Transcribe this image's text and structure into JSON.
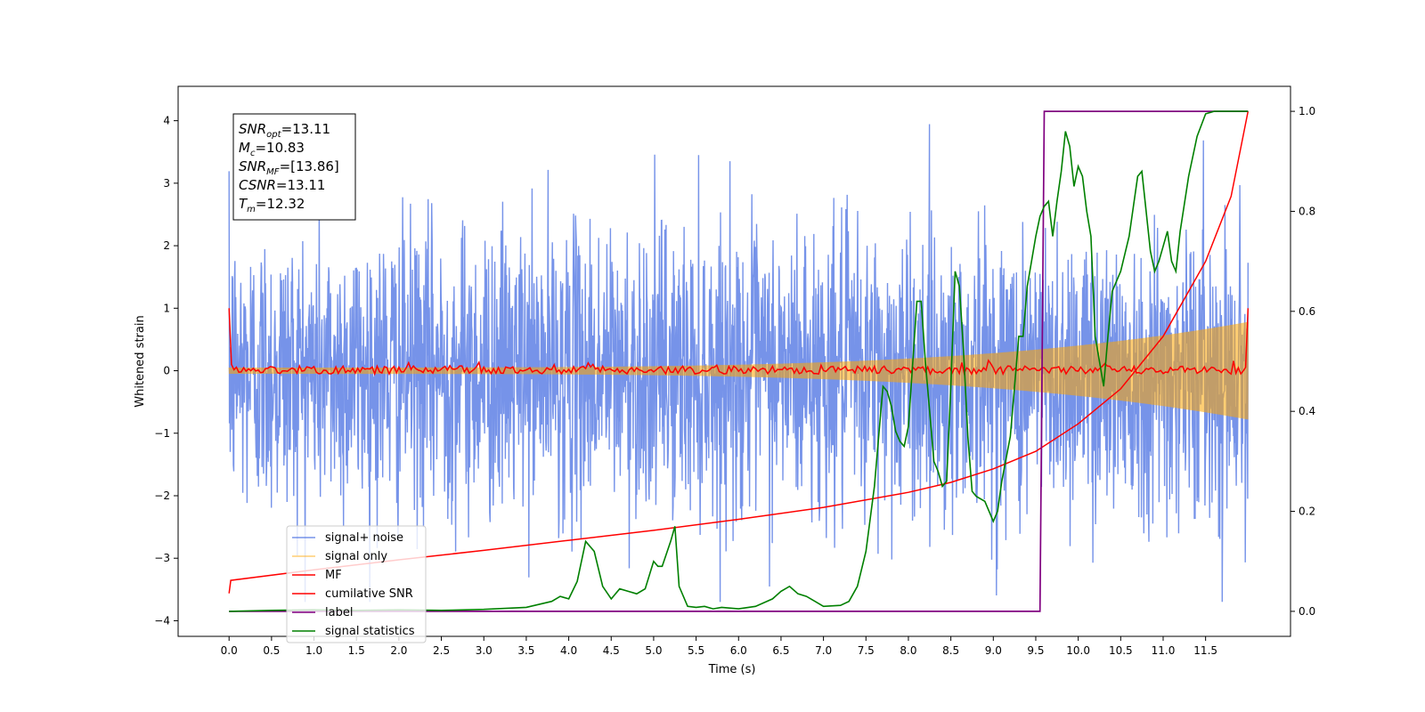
{
  "chart_data": {
    "type": "line",
    "title": "",
    "xlabel": "Time (s)",
    "ylabel": "Whitened strain",
    "ylabel_right": "",
    "xlim": [
      -0.6,
      12.5
    ],
    "ylim": [
      -4.25,
      4.55
    ],
    "ylim_right": [
      -0.05,
      1.05
    ],
    "x_ticks": [
      0.0,
      0.5,
      1.0,
      1.5,
      2.0,
      2.5,
      3.0,
      3.5,
      4.0,
      4.5,
      5.0,
      5.5,
      6.0,
      6.5,
      7.0,
      7.5,
      8.0,
      8.5,
      9.0,
      9.5,
      10.0,
      10.5,
      11.0,
      11.5
    ],
    "x_tick_labels": [
      "0.0",
      "0.5",
      "1.0",
      "1.5",
      "2.0",
      "2.5",
      "3.0",
      "3.5",
      "4.0",
      "4.5",
      "5.0",
      "5.5",
      "6.0",
      "6.5",
      "7.0",
      "7.5",
      "8.0",
      "8.5",
      "9.0",
      "9.5",
      "10.0",
      "10.5",
      "11.0",
      "11.5"
    ],
    "y_ticks": [
      -4,
      -3,
      -2,
      -1,
      0,
      1,
      2,
      3,
      4
    ],
    "y_tick_labels": [
      "−4",
      "−3",
      "−2",
      "−1",
      "0",
      "1",
      "2",
      "3",
      "4"
    ],
    "y_ticks_right": [
      0.0,
      0.2,
      0.4,
      0.6,
      0.8,
      1.0
    ],
    "y_tick_labels_right": [
      "0.0",
      "0.2",
      "0.4",
      "0.6",
      "0.8",
      "1.0"
    ],
    "grid": false,
    "legend_position": "lower-left",
    "annotation_lines": [
      {
        "name": "SNR",
        "sub": "opt",
        "value": "=13.11"
      },
      {
        "name": "M",
        "sub": "c",
        "value": "=10.83"
      },
      {
        "name": "SNR",
        "sub": "MF",
        "value": "=[13.86]"
      },
      {
        "name": "CSNR",
        "sub": "",
        "value": "=13.11"
      },
      {
        "name": "T",
        "sub": "m",
        "value": "=12.32"
      }
    ],
    "series": [
      {
        "name": "signal+ noise",
        "color": "#4169e1",
        "axis": "left",
        "description_range": [
          -3.7,
          4.2
        ],
        "x_range": [
          0.0,
          12.0
        ]
      },
      {
        "name": "signal only",
        "color": "#ffa500",
        "axis": "left",
        "amplitude_start": 0.05,
        "amplitude_end": 0.78,
        "x_range": [
          0.0,
          12.0
        ]
      },
      {
        "name": "MF",
        "color": "#ff0000",
        "axis": "left",
        "start_value": 1.0,
        "end_value": 1.0,
        "typical_range": [
          -0.1,
          0.15
        ],
        "x_range": [
          0.0,
          12.0
        ]
      },
      {
        "name": "cumilative SNR",
        "color": "#ff0000",
        "axis": "right",
        "x": [
          0.0,
          0.02,
          1.0,
          2.0,
          3.0,
          4.0,
          5.0,
          6.0,
          7.0,
          8.0,
          8.5,
          9.0,
          9.5,
          10.0,
          10.5,
          11.0,
          11.5,
          11.8,
          12.0
        ],
        "values": [
          0.036,
          0.062,
          0.083,
          0.103,
          0.122,
          0.142,
          0.162,
          0.184,
          0.208,
          0.238,
          0.258,
          0.285,
          0.32,
          0.375,
          0.445,
          0.55,
          0.7,
          0.83,
          1.0
        ]
      },
      {
        "name": "label",
        "color": "#800080",
        "axis": "right",
        "x": [
          0.0,
          9.55,
          9.6,
          12.0
        ],
        "values": [
          0.0,
          0.0,
          1.0,
          1.0
        ]
      },
      {
        "name": "signal statistics",
        "color": "#008000",
        "axis": "right",
        "x": [
          0.0,
          0.5,
          1.0,
          1.5,
          2.0,
          2.5,
          3.0,
          3.5,
          3.8,
          3.9,
          4.0,
          4.1,
          4.2,
          4.3,
          4.4,
          4.5,
          4.6,
          4.7,
          4.8,
          4.9,
          5.0,
          5.05,
          5.1,
          5.2,
          5.25,
          5.3,
          5.4,
          5.5,
          5.6,
          5.7,
          5.8,
          6.0,
          6.2,
          6.4,
          6.5,
          6.6,
          6.7,
          6.8,
          6.9,
          7.0,
          7.2,
          7.3,
          7.4,
          7.5,
          7.6,
          7.7,
          7.75,
          7.8,
          7.85,
          7.9,
          7.95,
          8.0,
          8.1,
          8.15,
          8.2,
          8.3,
          8.35,
          8.4,
          8.45,
          8.5,
          8.55,
          8.6,
          8.65,
          8.7,
          8.75,
          8.8,
          8.9,
          9.0,
          9.05,
          9.1,
          9.2,
          9.3,
          9.35,
          9.4,
          9.45,
          9.5,
          9.55,
          9.6,
          9.65,
          9.7,
          9.75,
          9.8,
          9.85,
          9.9,
          9.95,
          10.0,
          10.05,
          10.1,
          10.15,
          10.2,
          10.3,
          10.35,
          10.4,
          10.5,
          10.6,
          10.7,
          10.75,
          10.8,
          10.85,
          10.9,
          10.95,
          11.0,
          11.05,
          11.1,
          11.15,
          11.2,
          11.3,
          11.4,
          11.5,
          11.6,
          11.8,
          12.0
        ],
        "values": [
          0.0,
          0.002,
          0.003,
          0.002,
          0.003,
          0.002,
          0.004,
          0.008,
          0.02,
          0.03,
          0.025,
          0.06,
          0.14,
          0.12,
          0.05,
          0.025,
          0.045,
          0.04,
          0.035,
          0.045,
          0.1,
          0.09,
          0.09,
          0.14,
          0.17,
          0.05,
          0.01,
          0.008,
          0.01,
          0.005,
          0.008,
          0.005,
          0.01,
          0.025,
          0.04,
          0.05,
          0.035,
          0.03,
          0.02,
          0.01,
          0.012,
          0.02,
          0.05,
          0.12,
          0.25,
          0.45,
          0.44,
          0.41,
          0.36,
          0.34,
          0.33,
          0.37,
          0.62,
          0.62,
          0.5,
          0.3,
          0.28,
          0.25,
          0.26,
          0.45,
          0.68,
          0.65,
          0.52,
          0.35,
          0.24,
          0.23,
          0.22,
          0.18,
          0.2,
          0.26,
          0.35,
          0.55,
          0.55,
          0.65,
          0.7,
          0.75,
          0.79,
          0.81,
          0.82,
          0.75,
          0.82,
          0.88,
          0.96,
          0.93,
          0.85,
          0.89,
          0.87,
          0.8,
          0.75,
          0.55,
          0.45,
          0.55,
          0.64,
          0.68,
          0.75,
          0.87,
          0.88,
          0.8,
          0.72,
          0.68,
          0.7,
          0.73,
          0.76,
          0.7,
          0.68,
          0.76,
          0.87,
          0.95,
          0.995,
          1.0,
          1.0,
          1.0
        ]
      }
    ]
  }
}
